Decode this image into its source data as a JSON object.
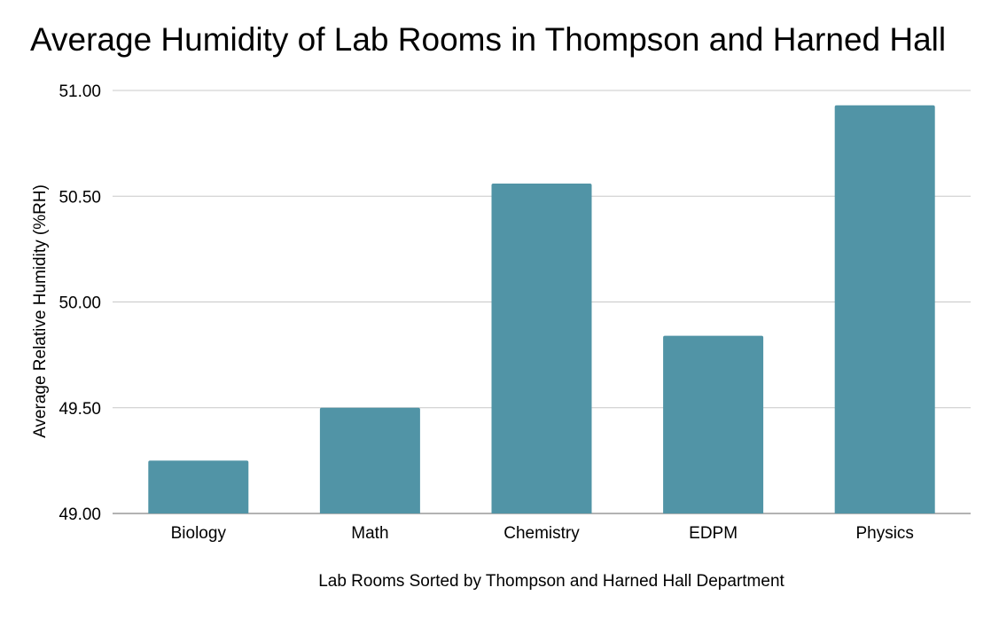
{
  "chart_data": {
    "type": "bar",
    "title": "Average Humidity of Lab Rooms in Thompson and Harned Hall",
    "xlabel": "Lab Rooms Sorted by Thompson and Harned Hall Department",
    "ylabel": "Average Relative Humidity (%RH)",
    "categories": [
      "Biology",
      "Math",
      "Chemistry",
      "EDPM",
      "Physics"
    ],
    "values": [
      49.25,
      49.5,
      50.56,
      49.84,
      50.93
    ],
    "ylim": [
      49.0,
      51.0
    ],
    "yticks": [
      "49.00",
      "49.50",
      "50.00",
      "50.50",
      "51.00"
    ],
    "ytick_values": [
      49.0,
      49.5,
      50.0,
      50.5,
      51.0
    ],
    "grid": true,
    "legend": "none",
    "bar_color": "#5194a6",
    "grid_color": "#c8c8c8",
    "axis_color": "#9a9a9a"
  }
}
